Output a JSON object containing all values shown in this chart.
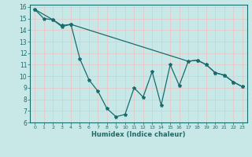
{
  "xlabel": "Humidex (Indice chaleur)",
  "background_color": "#c8e8e8",
  "grid_color": "#e8c8c8",
  "line_color": "#1a6b6b",
  "xlim": [
    -0.5,
    23.5
  ],
  "ylim": [
    6,
    16.2
  ],
  "xticks": [
    0,
    1,
    2,
    3,
    4,
    5,
    6,
    7,
    8,
    9,
    10,
    11,
    12,
    13,
    14,
    15,
    16,
    17,
    18,
    19,
    20,
    21,
    22,
    23
  ],
  "yticks": [
    6,
    7,
    8,
    9,
    10,
    11,
    12,
    13,
    14,
    15,
    16
  ],
  "line1_x": [
    0,
    1,
    2,
    3,
    4,
    5,
    6,
    7,
    8,
    9,
    10,
    11,
    12,
    13,
    14,
    15,
    16,
    17,
    18,
    19,
    20,
    21,
    22,
    23
  ],
  "line1_y": [
    15.8,
    15.0,
    14.9,
    14.4,
    14.5,
    11.5,
    9.7,
    8.7,
    7.2,
    6.5,
    6.7,
    9.0,
    8.2,
    10.4,
    7.5,
    11.0,
    9.2,
    11.3,
    11.4,
    11.0,
    10.3,
    10.1,
    9.5,
    9.1
  ],
  "line2_x": [
    0,
    2,
    3,
    4,
    17,
    18,
    19,
    20,
    21,
    22,
    23
  ],
  "line2_y": [
    15.8,
    14.9,
    14.3,
    14.5,
    11.3,
    11.4,
    11.0,
    10.3,
    10.1,
    9.5,
    9.1
  ]
}
